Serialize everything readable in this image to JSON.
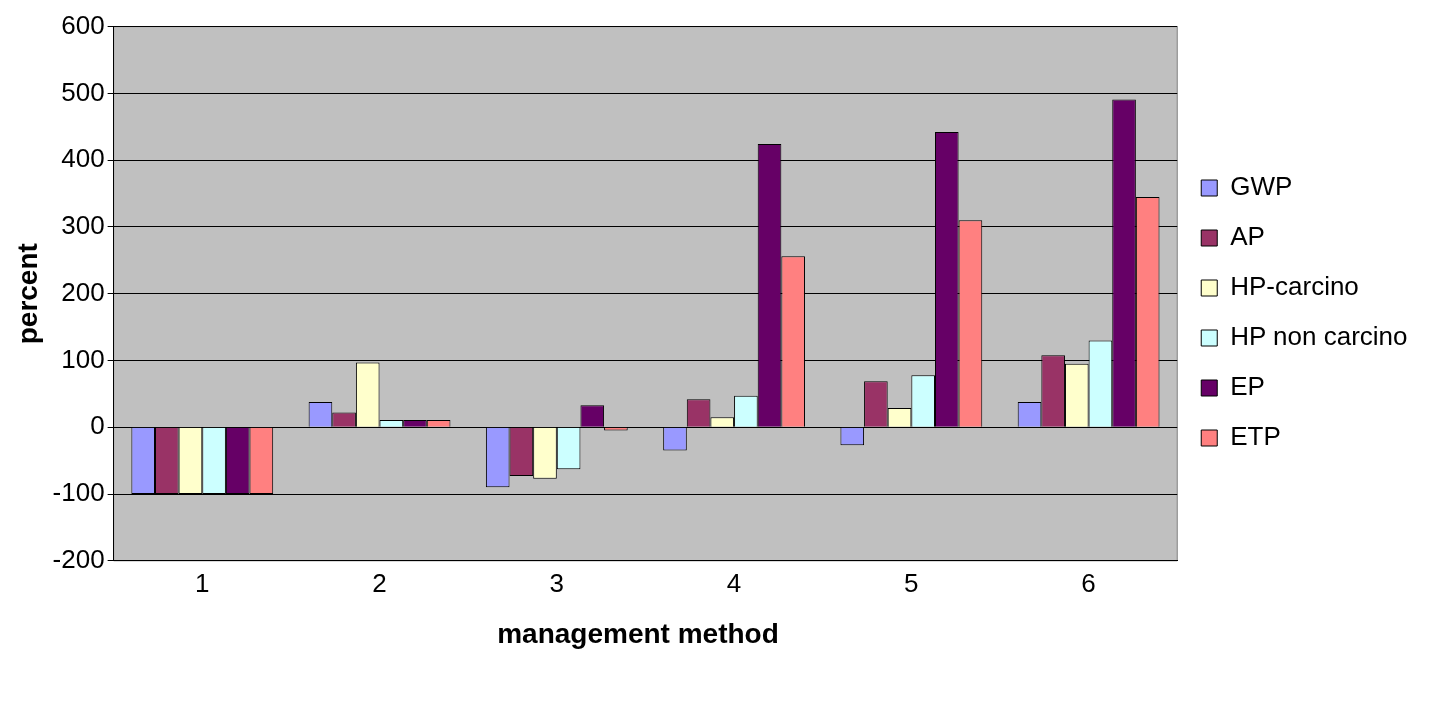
{
  "chart_data": {
    "type": "bar",
    "xlabel": "management method",
    "ylabel": "percent",
    "categories": [
      "1",
      "2",
      "3",
      "4",
      "5",
      "6"
    ],
    "series": [
      {
        "name": "GWP",
        "color": "#9999ff",
        "values": [
          -100,
          38,
          -90,
          -35,
          -27,
          38
        ]
      },
      {
        "name": "AP",
        "color": "#993366",
        "values": [
          -100,
          22,
          -73,
          42,
          69,
          108
        ]
      },
      {
        "name": "HP-carcino",
        "color": "#ffffcc",
        "values": [
          -100,
          97,
          -77,
          15,
          29,
          95
        ]
      },
      {
        "name": "HP non carcino",
        "color": "#ccffff",
        "values": [
          -100,
          11,
          -63,
          47,
          78,
          130
        ]
      },
      {
        "name": "EP",
        "color": "#660066",
        "values": [
          -100,
          11,
          33,
          424,
          442,
          491
        ]
      },
      {
        "name": "ETP",
        "color": "#ff8080",
        "values": [
          -100,
          11,
          -5,
          256,
          310,
          345
        ]
      }
    ],
    "ylim": [
      -200,
      600
    ],
    "yticks": [
      -200,
      -100,
      0,
      100,
      200,
      300,
      400,
      500,
      600
    ],
    "grid": "y",
    "legend": "right"
  }
}
